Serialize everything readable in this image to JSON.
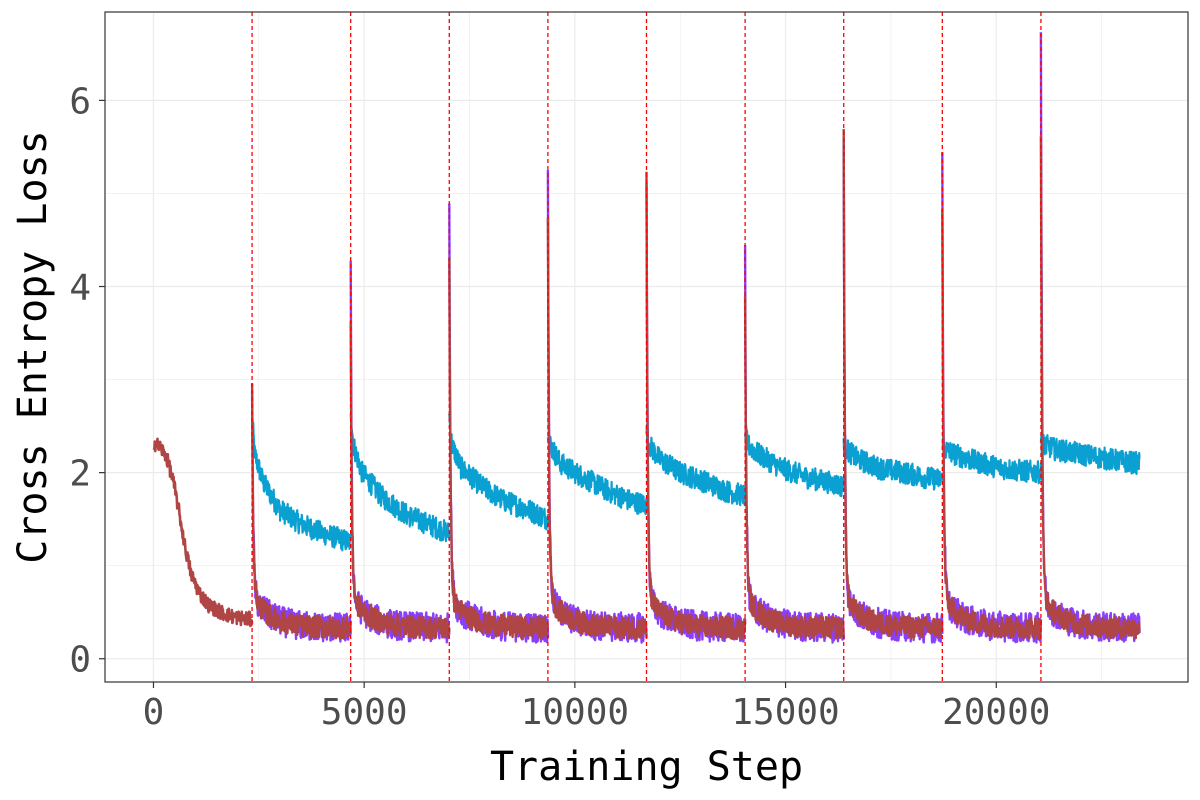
{
  "chart_data": {
    "type": "line",
    "title": "",
    "xlabel": "Training Step",
    "ylabel": "Cross Entropy Loss",
    "xlim": [
      -1150,
      24550
    ],
    "ylim": [
      -0.25,
      6.95
    ],
    "x_ticks": [
      0,
      5000,
      10000,
      15000,
      20000
    ],
    "y_ticks": [
      0,
      2,
      4,
      6
    ],
    "grid": true,
    "legend": "none",
    "colors": {
      "series_blue": "#0aa0d2",
      "series_purple": "#8a3ffc",
      "series_red": "#b04545",
      "vline": "#ff0000"
    },
    "vlines": [
      2340,
      4680,
      7020,
      9360,
      11700,
      14040,
      16380,
      18720,
      21060
    ],
    "series": [
      {
        "color": "#0aa0d2",
        "segments": [
          {
            "x": [
              2340,
              2400,
              2600,
              3000,
              3500,
              4000,
              4680
            ],
            "y": [
              2.6,
              2.2,
              1.9,
              1.6,
              1.45,
              1.35,
              1.25
            ]
          },
          {
            "x": [
              4680,
              4740,
              4950,
              5400,
              6000,
              6500,
              7020
            ],
            "y": [
              2.7,
              2.3,
              2.0,
              1.75,
              1.55,
              1.45,
              1.35
            ]
          },
          {
            "x": [
              7020,
              7080,
              7300,
              7800,
              8300,
              8900,
              9360
            ],
            "y": [
              2.6,
              2.3,
              2.05,
              1.85,
              1.7,
              1.6,
              1.5
            ]
          },
          {
            "x": [
              9360,
              9420,
              9650,
              10200,
              10800,
              11300,
              11700
            ],
            "y": [
              2.5,
              2.3,
              2.1,
              1.95,
              1.8,
              1.7,
              1.65
            ]
          },
          {
            "x": [
              11700,
              11760,
              12000,
              12500,
              13100,
              13600,
              14040
            ],
            "y": [
              2.45,
              2.3,
              2.15,
              2.0,
              1.9,
              1.8,
              1.75
            ]
          },
          {
            "x": [
              14040,
              14100,
              14350,
              14900,
              15500,
              16000,
              16380
            ],
            "y": [
              2.45,
              2.3,
              2.2,
              2.05,
              1.95,
              1.9,
              1.85
            ]
          },
          {
            "x": [
              16380,
              16440,
              16700,
              17200,
              17800,
              18300,
              18720
            ],
            "y": [
              2.35,
              2.25,
              2.15,
              2.05,
              2.0,
              1.95,
              1.92
            ]
          },
          {
            "x": [
              18720,
              18780,
              19000,
              19500,
              20100,
              20600,
              21060
            ],
            "y": [
              2.35,
              2.25,
              2.2,
              2.12,
              2.05,
              2.02,
              2.0
            ]
          },
          {
            "x": [
              21060,
              21120,
              21400,
              22000,
              22600,
              23000,
              23400
            ],
            "y": [
              2.35,
              2.3,
              2.25,
              2.2,
              2.15,
              2.12,
              2.1
            ]
          }
        ]
      },
      {
        "color": "#8a3ffc",
        "peaks": [
          2.85,
          4.05,
          4.95,
          5.3,
          5.15,
          4.25,
          5.5,
          5.45,
          6.65
        ],
        "baseline": 0.33,
        "last_x": 23400
      },
      {
        "color": "#b04545",
        "initial": {
          "x": [
            0,
            150,
            300,
            450,
            600,
            750,
            900,
            1100,
            1300,
            1600,
            1900,
            2340
          ],
          "y": [
            2.32,
            2.28,
            2.18,
            1.95,
            1.6,
            1.2,
            0.9,
            0.7,
            0.58,
            0.5,
            0.45,
            0.42
          ]
        },
        "peaks": [
          2.85,
          3.5,
          4.3,
          4.7,
          5.05,
          3.85,
          5.5,
          4.85,
          5.6
        ],
        "baseline": 0.33,
        "last_x": 23400
      }
    ]
  }
}
